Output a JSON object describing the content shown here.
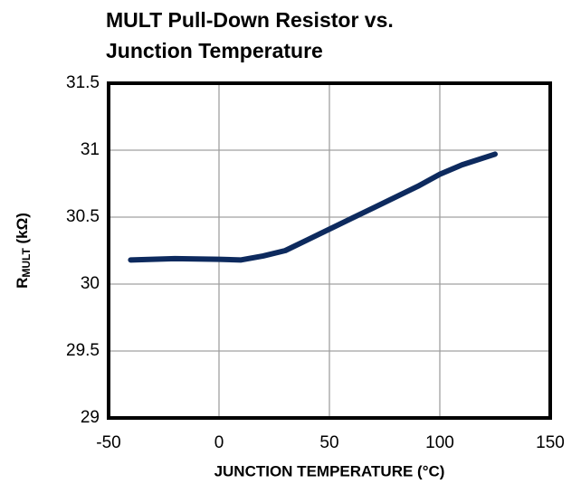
{
  "chart_data": {
    "type": "line",
    "title": [
      "MULT Pull-Down Resistor vs.",
      "Junction Temperature"
    ],
    "xlabel": "JUNCTION  TEMPERATURE  (°C)",
    "ylabel": "R",
    "ylabel_sub": "MULT",
    "ylabel_unit": " (kΩ)",
    "x": [
      -40,
      -20,
      0,
      10,
      20,
      30,
      40,
      50,
      60,
      70,
      80,
      90,
      100,
      110,
      125
    ],
    "series": [
      {
        "name": "RMULT",
        "color": "#0d2a5e",
        "values": [
          30.18,
          30.19,
          30.185,
          30.18,
          30.21,
          30.25,
          30.33,
          30.41,
          30.49,
          30.57,
          30.65,
          30.73,
          30.82,
          30.89,
          30.97
        ]
      }
    ],
    "xlim": [
      -50,
      150
    ],
    "xticks": [
      -50,
      0,
      50,
      100,
      150
    ],
    "ylim": [
      29,
      31.5
    ],
    "yticks": [
      29,
      29.5,
      30,
      30.5,
      31,
      31.5
    ],
    "grid": true
  }
}
